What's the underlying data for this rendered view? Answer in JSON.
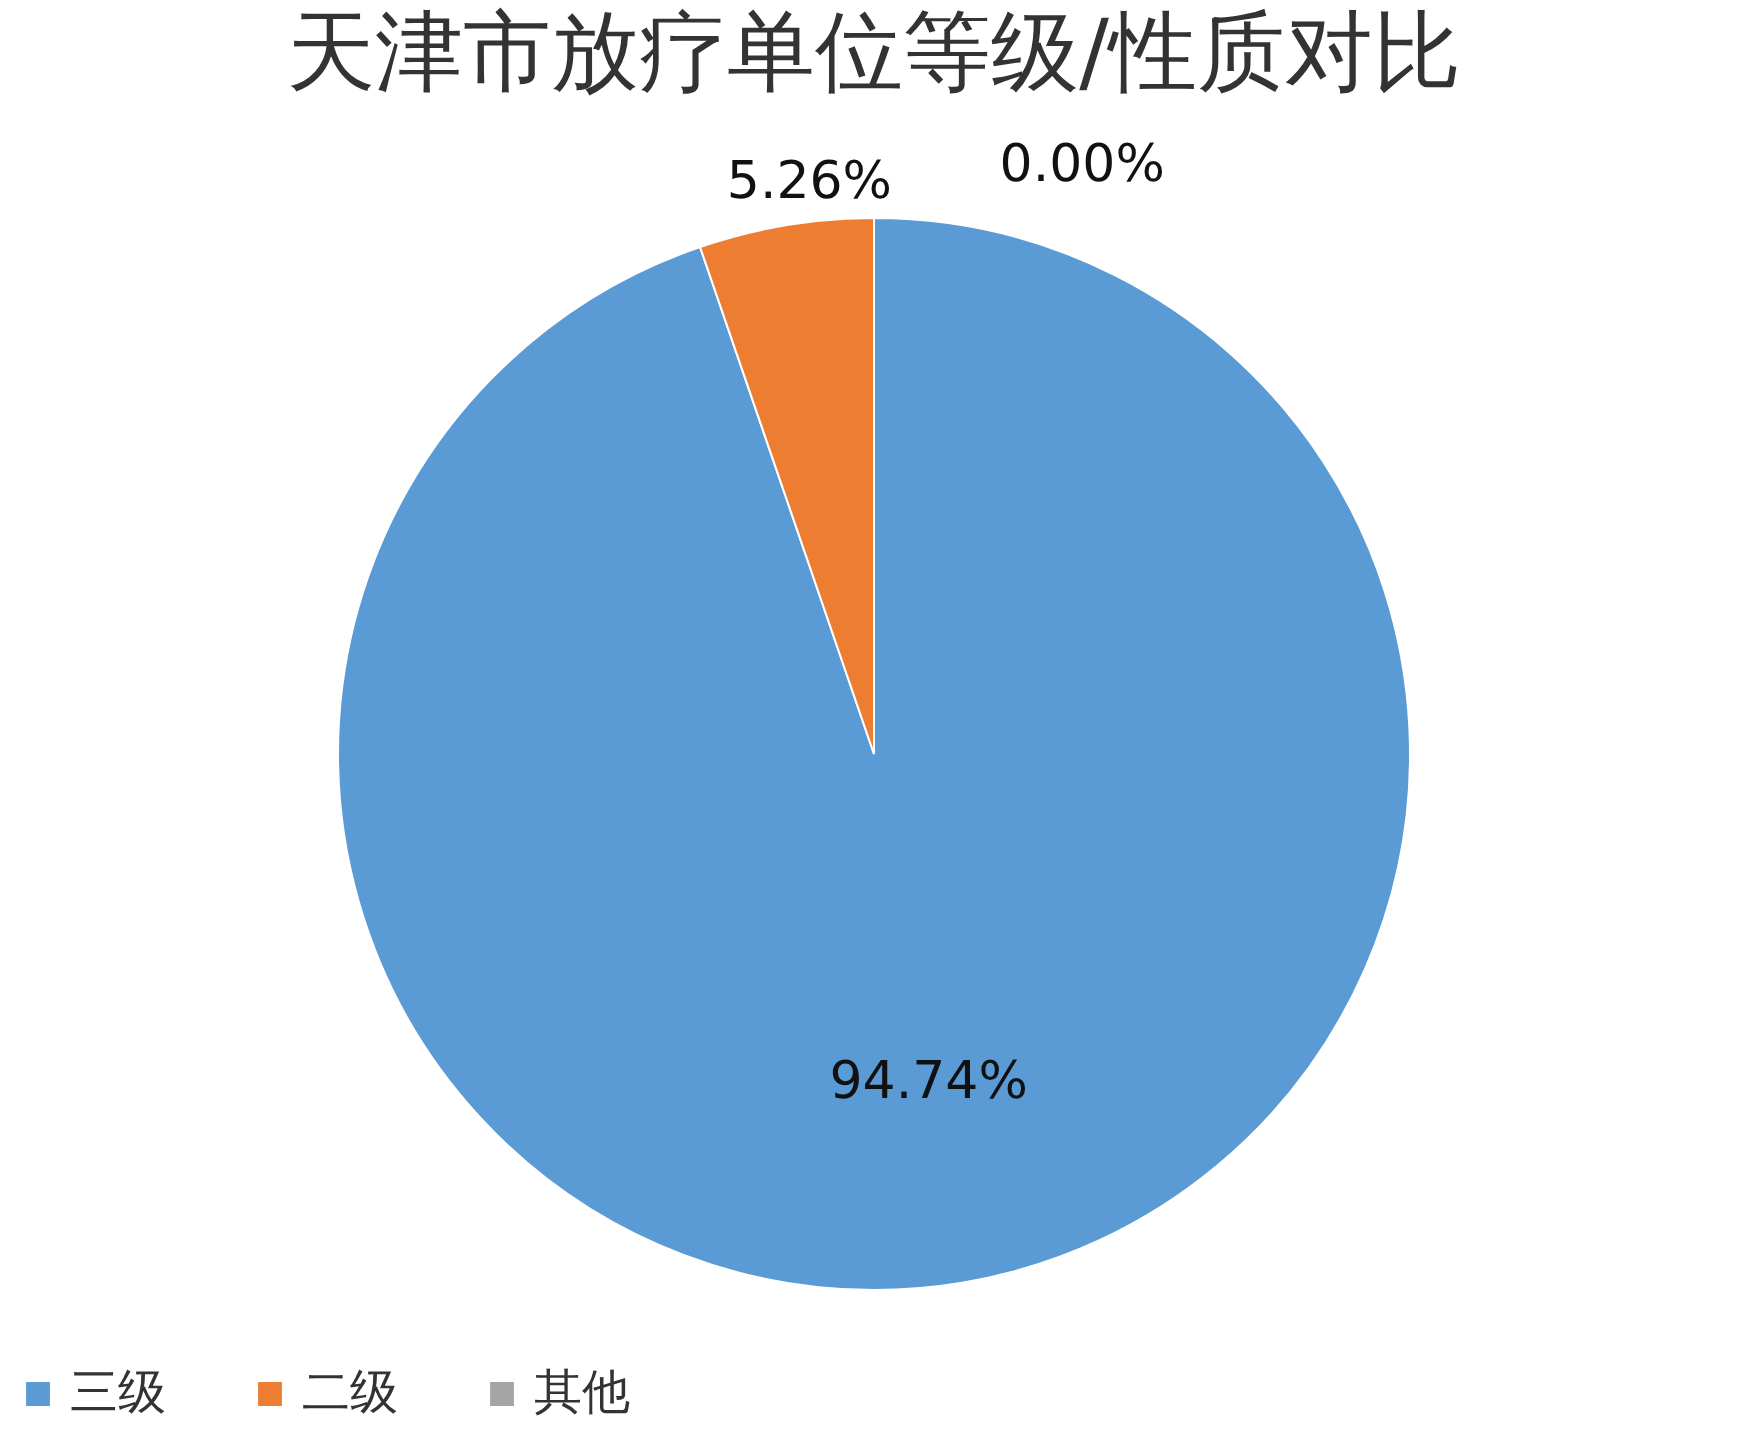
{
  "chart_data": {
    "type": "pie",
    "title": "天津市放疗单位等级/性质对比",
    "categories": [
      "三级",
      "二级",
      "其他"
    ],
    "values": [
      94.74,
      5.26,
      0.0
    ],
    "colors": [
      "#5b9bd5",
      "#ed7d31",
      "#a5a5a5"
    ],
    "value_labels": [
      "94.74%",
      "5.26%",
      "0.00%"
    ],
    "legend": "bottom"
  }
}
